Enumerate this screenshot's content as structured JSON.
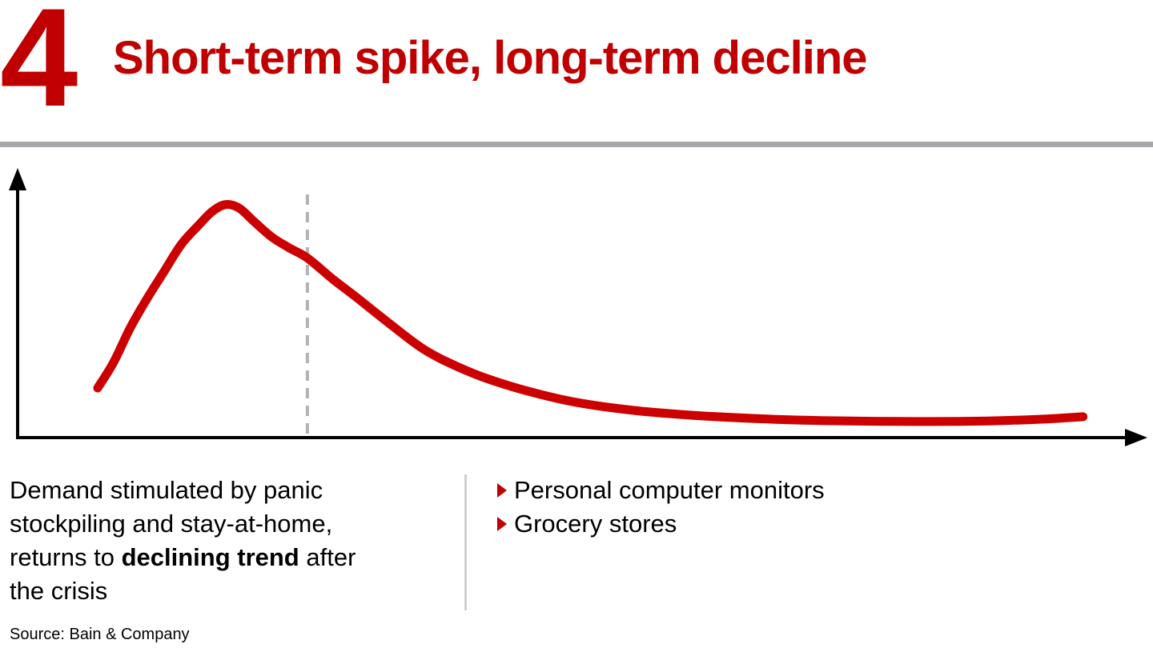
{
  "header": {
    "number": "4",
    "title": "Short-term spike, long-term decline"
  },
  "caption": {
    "text_before": "Demand stimulated by panic stockpiling and stay-at-home, returns to ",
    "bold": "declining trend",
    "text_after": " after the crisis"
  },
  "examples": {
    "items": [
      {
        "label": "Personal computer monitors"
      },
      {
        "label": "Grocery stores"
      }
    ]
  },
  "source": {
    "label": "Source: Bain & Company"
  },
  "colors": {
    "accent_red": "#c00000",
    "curve_red": "#cc0000",
    "divider_gray": "#a6a8ab",
    "dashed_gray": "#b1b3b5",
    "caption_divider_gray": "#d0d0d0",
    "axis_black": "#000000"
  },
  "chart_data": {
    "type": "line",
    "title": "",
    "xlabel": "",
    "ylabel": "",
    "axes_labeled": false,
    "grid": false,
    "legend": "none",
    "axis_style": "arrow-tipped unlabeled conceptual axes (x = time, y = demand)",
    "x_range": [
      0,
      100
    ],
    "y_range": [
      0,
      100
    ],
    "series": [
      {
        "name": "Demand",
        "color": "#cc0000",
        "x": [
          7.1,
          8.5,
          10,
          11.5,
          13,
          14.5,
          16,
          17.3,
          18.5,
          19.7,
          21,
          22.5,
          24,
          25.7,
          28,
          30,
          33,
          36,
          39,
          42,
          46,
          50,
          55,
          60,
          66,
          72,
          80,
          86,
          91,
          94.5
        ],
        "y": [
          18.5,
          28,
          41,
          52,
          62,
          72,
          79,
          84.5,
          87,
          85.5,
          80.5,
          75,
          71,
          67,
          59,
          52.5,
          42.5,
          33,
          26.5,
          21.5,
          16.5,
          12.8,
          10,
          8.3,
          7.0,
          6.3,
          6.0,
          6.2,
          6.9,
          7.8
        ]
      }
    ],
    "annotations": [
      {
        "type": "vline",
        "x": 25.7,
        "style": "dashed",
        "color": "#b1b3b5",
        "label": ""
      }
    ]
  }
}
